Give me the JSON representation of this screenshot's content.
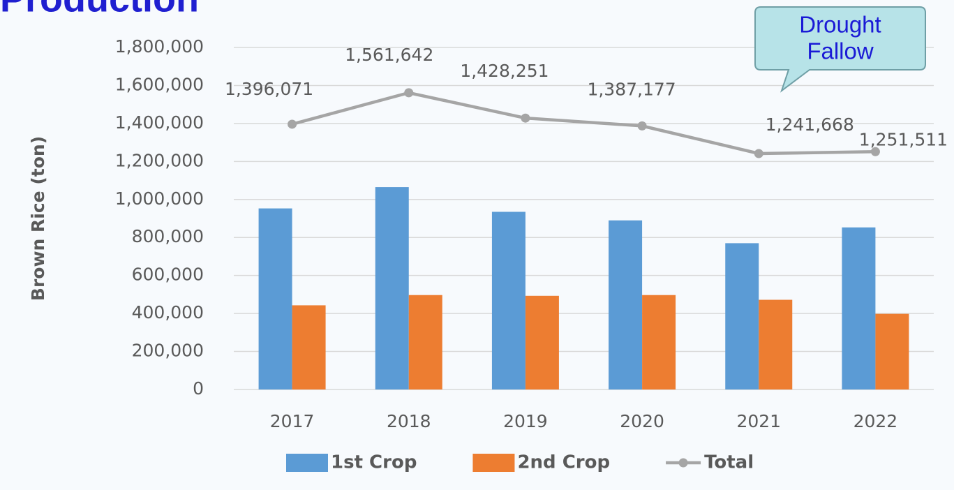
{
  "chart_data": {
    "type": "bar",
    "title": "Production",
    "y_axis_label": "Brown Rice (ton)",
    "categories": [
      "2017",
      "2018",
      "2019",
      "2020",
      "2021",
      "2022"
    ],
    "series": [
      {
        "name": "1st Crop",
        "type": "bar",
        "color": "#5b9bd5",
        "values": [
          953000,
          1065000,
          935000,
          890000,
          770000,
          853000
        ]
      },
      {
        "name": "2nd Crop",
        "type": "bar",
        "color": "#ed7d31",
        "values": [
          443000,
          497000,
          493000,
          497000,
          472000,
          398000
        ]
      },
      {
        "name": "Total",
        "type": "line",
        "color": "#a5a5a5",
        "values": [
          1396071,
          1561642,
          1428251,
          1387177,
          1241668,
          1251511
        ],
        "value_labels": [
          "1,396,071",
          "1,561,642",
          "1,428,251",
          "1,387,177",
          "1,241,668",
          "1,251,511"
        ]
      }
    ],
    "annotation": [
      "Drought",
      "Fallow"
    ],
    "ylim": [
      0,
      1800000
    ],
    "yticks": [
      0,
      {
        "value": 200000,
        "label": "200,000"
      },
      {
        "value": 400000,
        "label": "400,000"
      },
      {
        "value": 600000,
        "label": "600,000"
      },
      {
        "value": 800000,
        "label": "800,000"
      },
      {
        "value": 1000000,
        "label": "1,000,000"
      },
      {
        "value": 1200000,
        "label": "1,200,000"
      },
      {
        "value": 1400000,
        "label": "1,400,000"
      },
      {
        "value": 1600000,
        "label": "1,600,000"
      },
      {
        "value": 1800000,
        "label": "1,800,000"
      }
    ],
    "grid": true,
    "legend": "bottom"
  }
}
